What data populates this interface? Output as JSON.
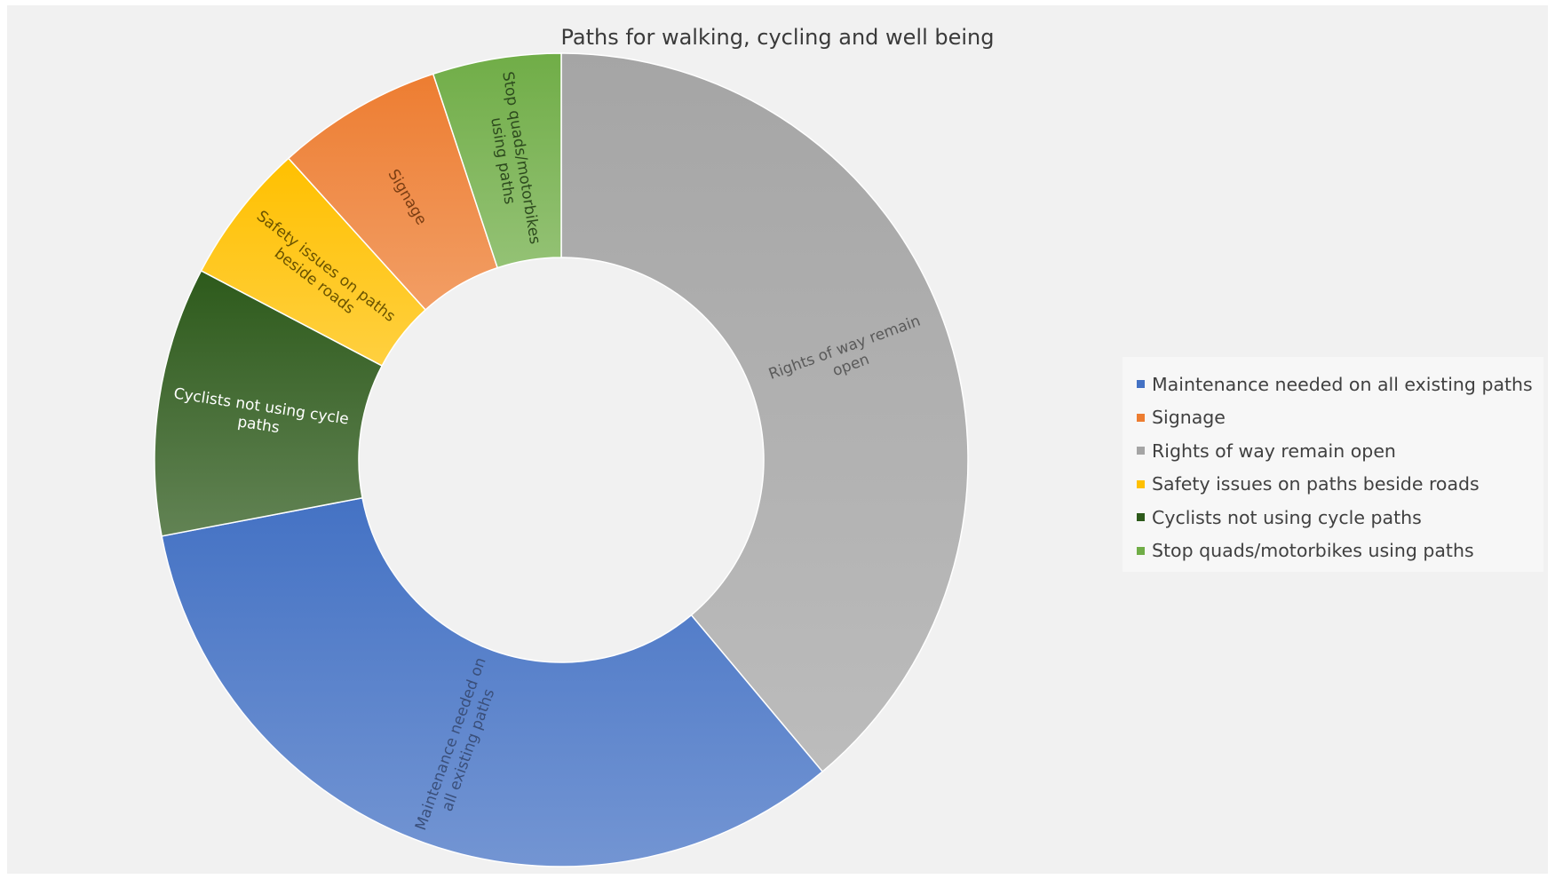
{
  "chart_data": {
    "type": "doughnut",
    "title": "Paths for walking, cycling and well being",
    "categories": [
      "Rights of way remain open",
      "Maintenance needed on all existing paths",
      "Cyclists not using cycle paths",
      "Safety issues on paths beside roads",
      "Signage",
      "Stop quads/motorbikes using paths"
    ],
    "values": [
      38.9,
      33.1,
      10.7,
      5.6,
      6.6,
      5.1
    ],
    "unit": "% share",
    "start_angle_deg": 0,
    "direction": "clockwise",
    "legend_position": "right",
    "colors": [
      "#a5a5a5",
      "#4472c4",
      "#2d5a1b",
      "#ffc000",
      "#ed7d31",
      "#70ad47"
    ],
    "slice_labels": [
      [
        "Rights of way remain",
        "open"
      ],
      [
        "Maintenance needed on",
        "all existing paths"
      ],
      [
        "Cyclists not using cycle",
        "paths"
      ],
      [
        "Safety issues on paths",
        "beside roads"
      ],
      [
        "Signage"
      ],
      [
        "Stop quads/motorbikes",
        "using paths"
      ]
    ],
    "label_colors": [
      "#5a5a5a",
      "#3a4f7a",
      "#ffffff",
      "#6a5300",
      "#7a3d12",
      "#2d4a1e"
    ],
    "legend": [
      {
        "label": "Maintenance needed on all existing paths",
        "color": "#4472c4"
      },
      {
        "label": "Signage",
        "color": "#ed7d31"
      },
      {
        "label": "Rights of way remain open",
        "color": "#a5a5a5"
      },
      {
        "label": "Safety issues on paths beside roads",
        "color": "#ffc000"
      },
      {
        "label": "Cyclists not using cycle paths",
        "color": "#2d5a1b"
      },
      {
        "label": "Stop quads/motorbikes using paths",
        "color": "#70ad47"
      }
    ]
  }
}
